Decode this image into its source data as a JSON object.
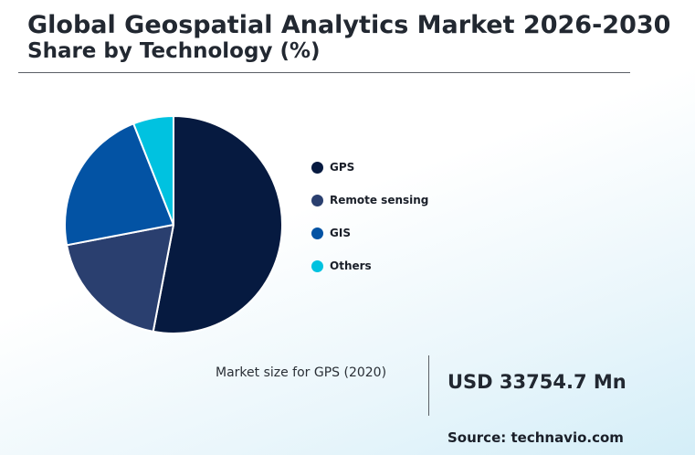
{
  "header": {
    "title": "Global Geospatial Analytics Market 2026-2030",
    "subtitle": "Share by Technology (%)"
  },
  "chart_data": {
    "type": "pie",
    "categories": [
      "GPS",
      "Remote sensing",
      "GIS",
      "Others"
    ],
    "values": [
      53,
      19,
      22,
      6
    ],
    "colors": [
      "#061a40",
      "#2a3f6f",
      "#0353a4",
      "#00c2e0"
    ],
    "legend": "right",
    "slice_stroke": "#ffffff"
  },
  "stat": {
    "label": "Market size for GPS (2020)",
    "value": "USD 33754.7 Mn"
  },
  "footer": {
    "source": "Source: technavio.com"
  }
}
